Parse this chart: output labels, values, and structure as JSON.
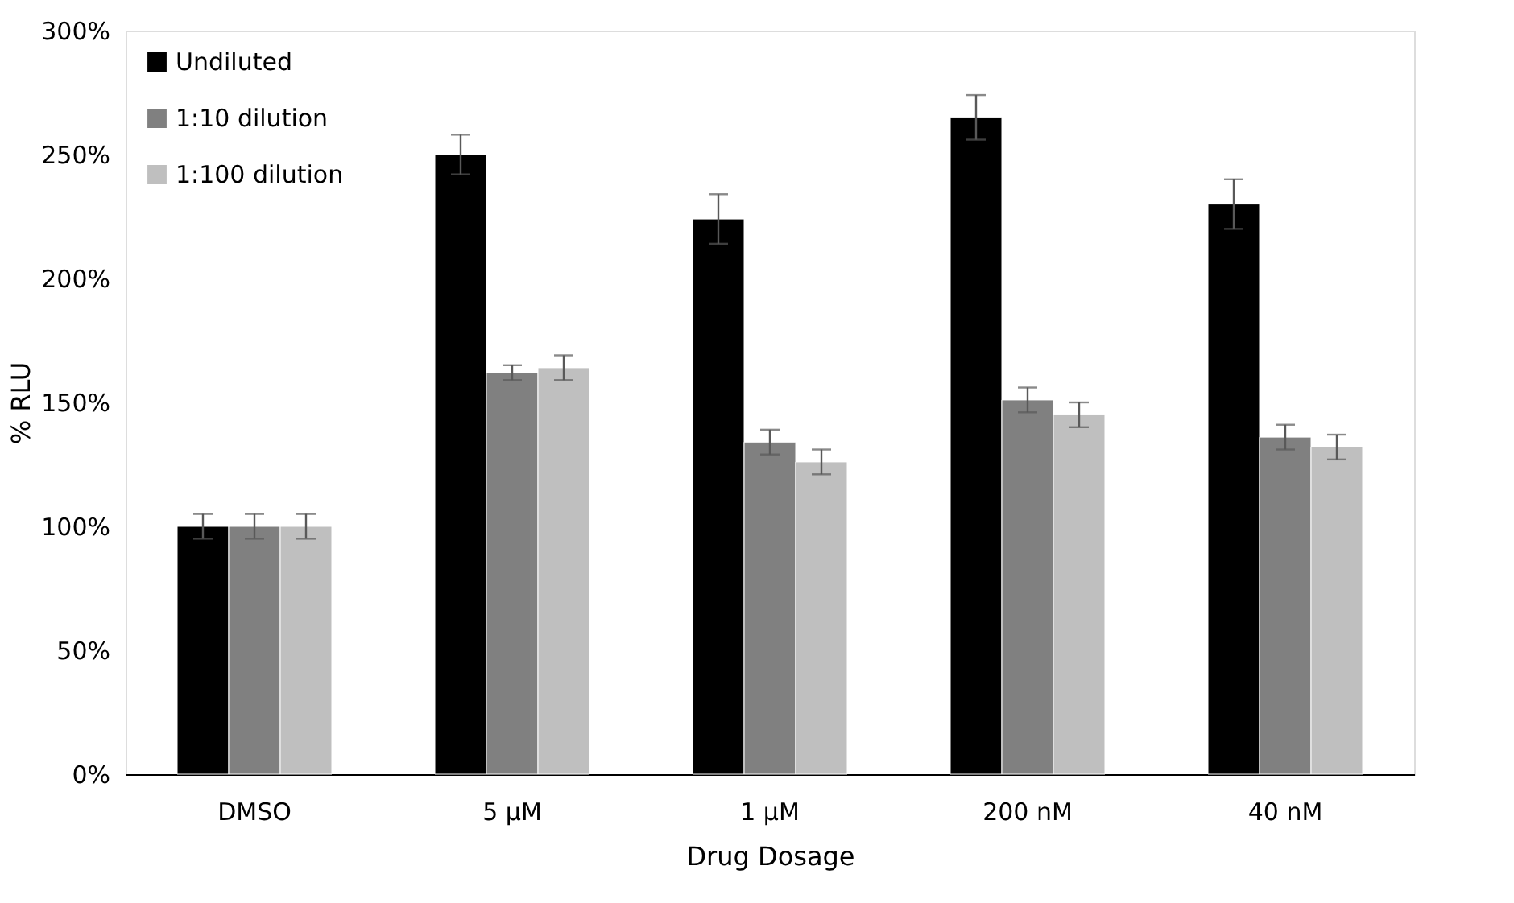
{
  "chart_data": {
    "type": "bar",
    "xlabel": "Drug Dosage",
    "ylabel": "% RLU",
    "categories": [
      "DMSO",
      "5 µM",
      "1 µM",
      "200 nM",
      "40 nM"
    ],
    "series": [
      {
        "name": "Undiluted",
        "color": "#000000",
        "values": [
          100,
          250,
          224,
          265,
          230
        ],
        "errors": [
          5,
          8,
          10,
          9,
          10
        ]
      },
      {
        "name": "1:10 dilution",
        "color": "#808080",
        "values": [
          100,
          162,
          134,
          151,
          136
        ],
        "errors": [
          5,
          3,
          5,
          5,
          5
        ]
      },
      {
        "name": "1:100 dilution",
        "color": "#bfbfbf",
        "values": [
          100,
          164,
          126,
          145,
          132
        ],
        "errors": [
          5,
          5,
          5,
          5,
          5
        ]
      }
    ],
    "ylim": [
      0,
      300
    ],
    "yticks": [
      {
        "value": 0,
        "label": "0%"
      },
      {
        "value": 50,
        "label": "50%"
      },
      {
        "value": 100,
        "label": "100%"
      },
      {
        "value": 150,
        "label": "150%"
      },
      {
        "value": 200,
        "label": "200%"
      },
      {
        "value": 250,
        "label": "250%"
      },
      {
        "value": 300,
        "label": "300%"
      }
    ],
    "grid": false,
    "legend": "top left"
  }
}
